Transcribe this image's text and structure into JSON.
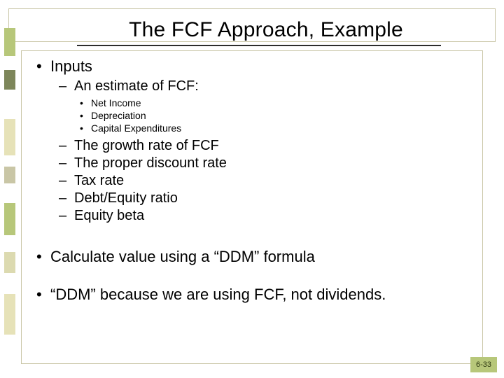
{
  "colors": {
    "border": "#c9c6a6",
    "accent_green": "#b7c77a",
    "accent_olive": "#7d865a",
    "accent_sand": "#e6e2b8",
    "accent_tan": "#dcdab0",
    "underline": "#2c2c2c",
    "text": "#000000",
    "background": "#ffffff"
  },
  "typography": {
    "title_fontsize": 30,
    "level1_fontsize": 22,
    "level2_fontsize": 20,
    "level3_fontsize": 14,
    "pagenum_fontsize": 11,
    "font_family": "Arial"
  },
  "title": "The FCF Approach, Example",
  "bullets": {
    "b1_glyph": "•",
    "b2_glyph": "–",
    "b3_glyph": "•"
  },
  "content": {
    "inputs_label": "Inputs",
    "fcf_estimate_label": "An estimate of FCF:",
    "fcf_components": {
      "net_income": "Net Income",
      "depreciation": "Depreciation",
      "capex": "Capital Expenditures"
    },
    "other_inputs": {
      "growth_rate": "The growth rate of FCF",
      "discount_rate": "The proper discount rate",
      "tax_rate": "Tax rate",
      "de_ratio": "Debt/Equity ratio",
      "equity_beta": "Equity beta"
    },
    "calc_line": "Calculate value using a “DDM” formula",
    "note_line": "“DDM” because we are using FCF, not dividends."
  },
  "page_number": "6-33"
}
